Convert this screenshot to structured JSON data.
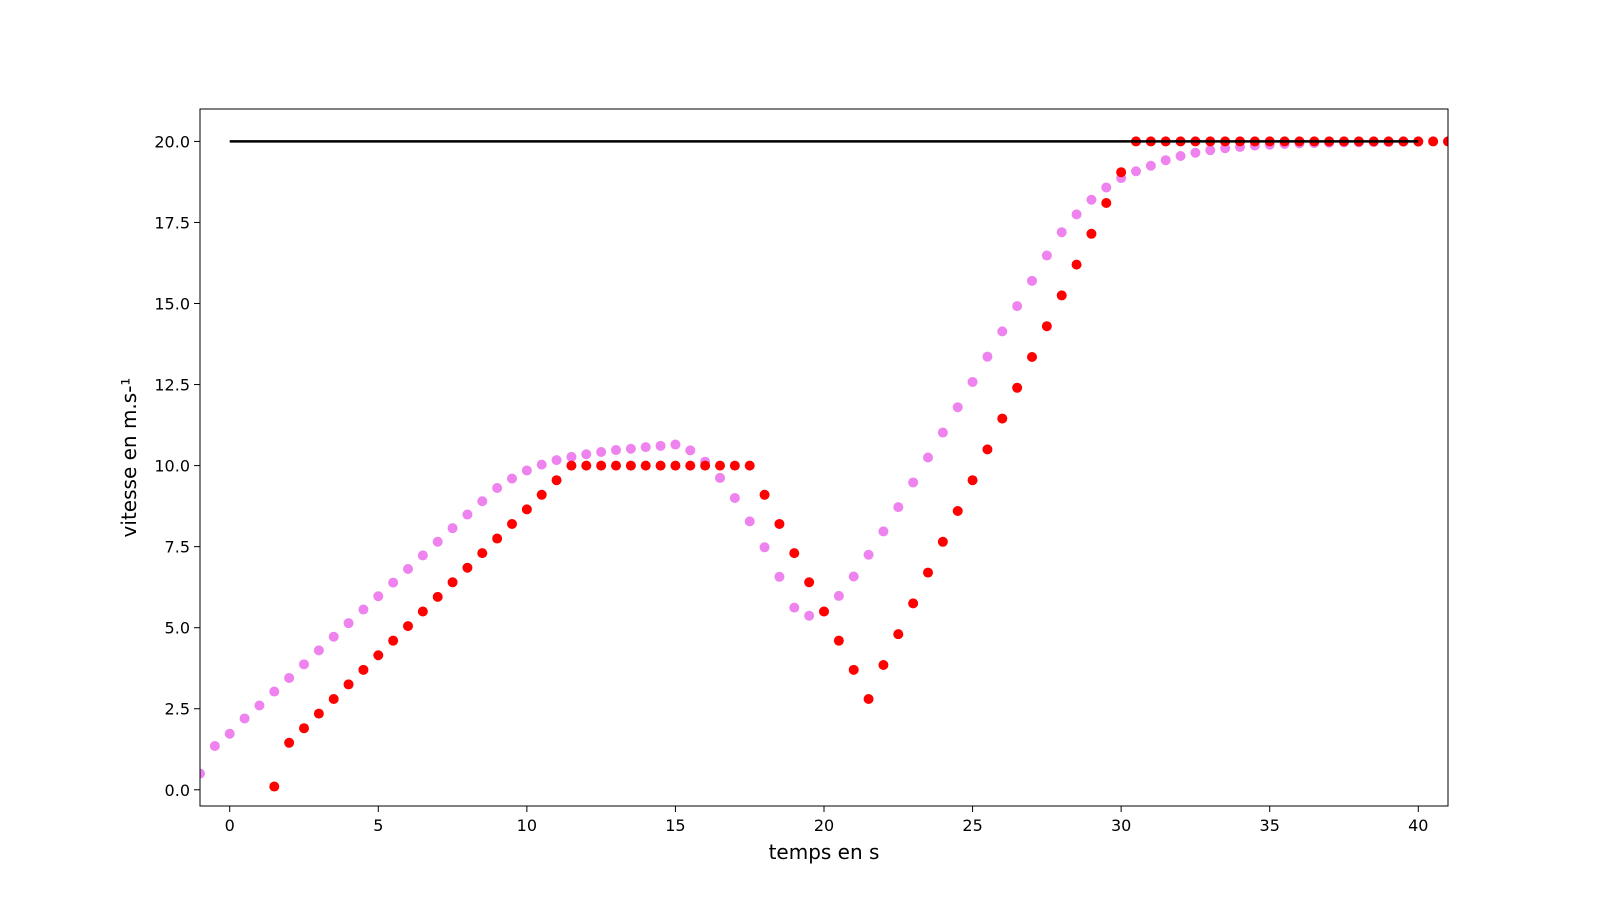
{
  "chart_data": {
    "type": "scatter",
    "title": "",
    "xlabel": "temps en s",
    "ylabel": "vitesse en m.s-¹",
    "xlim": [
      -1,
      41
    ],
    "ylim": [
      -0.5,
      21
    ],
    "x_ticks": [
      0,
      5,
      10,
      15,
      20,
      25,
      30,
      35,
      40
    ],
    "x_tick_labels": [
      "0",
      "5",
      "10",
      "15",
      "20",
      "25",
      "30",
      "35",
      "40"
    ],
    "y_ticks": [
      0.0,
      2.5,
      5.0,
      7.5,
      10.0,
      12.5,
      15.0,
      17.5,
      20.0
    ],
    "y_tick_labels": [
      "0.0",
      "2.5",
      "5.0",
      "7.5",
      "10.0",
      "12.5",
      "15.0",
      "17.5",
      "20.0"
    ],
    "grid": false,
    "legend": false,
    "reference_line": {
      "x": [
        0,
        40
      ],
      "y": [
        20,
        20
      ],
      "color": "#000000"
    },
    "series": [
      {
        "color": "#ee82ee",
        "marker": "circle",
        "x": [
          -1,
          -0.5,
          0,
          0.5,
          1,
          1.5,
          2,
          2.5,
          3,
          3.5,
          4,
          4.5,
          5,
          5.5,
          6,
          6.5,
          7,
          7.5,
          8,
          8.5,
          9,
          9.5,
          10,
          10.5,
          11,
          11.5,
          12,
          12.5,
          13,
          13.5,
          14,
          14.5,
          15,
          15.5,
          16,
          16.5,
          17,
          17.5,
          18,
          18.5,
          19,
          19.5,
          20,
          20.5,
          21,
          21.5,
          22,
          22.5,
          23,
          23.5,
          24,
          24.5,
          25,
          25.5,
          26,
          26.5,
          27,
          27.5,
          28,
          28.5,
          29,
          29.5,
          30,
          30.5,
          31,
          31.5,
          32,
          32.5,
          33,
          33.5,
          34,
          34.5,
          35,
          35.5,
          36,
          36.5,
          37,
          37.5,
          38,
          38.5,
          39,
          39.5,
          40
        ],
        "y": [
          0.5,
          1.35,
          1.73,
          2.2,
          2.6,
          3.03,
          3.45,
          3.87,
          4.3,
          4.72,
          5.14,
          5.56,
          5.97,
          6.39,
          6.81,
          7.23,
          7.65,
          8.07,
          8.49,
          8.9,
          9.31,
          9.6,
          9.85,
          10.03,
          10.17,
          10.27,
          10.35,
          10.42,
          10.48,
          10.52,
          10.57,
          10.61,
          10.65,
          10.47,
          10.12,
          9.62,
          9.0,
          8.28,
          7.48,
          6.57,
          5.62,
          5.37,
          5.5,
          5.98,
          6.58,
          7.25,
          7.97,
          8.72,
          9.48,
          10.25,
          11.02,
          11.8,
          12.58,
          13.36,
          14.14,
          14.92,
          15.7,
          16.48,
          17.2,
          17.75,
          18.2,
          18.58,
          18.87,
          19.08,
          19.25,
          19.42,
          19.55,
          19.65,
          19.73,
          19.79,
          19.83,
          19.87,
          19.9,
          19.92,
          19.94,
          19.95,
          19.96,
          19.97,
          19.97,
          19.98,
          19.98,
          19.99,
          19.99
        ]
      },
      {
        "color": "#ff0000",
        "marker": "circle",
        "x": [
          1.5,
          2,
          2.5,
          3,
          3.5,
          4,
          4.5,
          5,
          5.5,
          6,
          6.5,
          7,
          7.5,
          8,
          8.5,
          9,
          9.5,
          10,
          10.5,
          11,
          11.5,
          12,
          12.5,
          13,
          13.5,
          14,
          14.5,
          15,
          15.5,
          16,
          16.5,
          17,
          17.5,
          18,
          18.5,
          19,
          19.5,
          20,
          20.5,
          21,
          21.5,
          22,
          22.5,
          23,
          23.5,
          24,
          24.5,
          25,
          25.5,
          26,
          26.5,
          27,
          27.5,
          28,
          28.5,
          29,
          29.5,
          30,
          30.5,
          31,
          31.5,
          32,
          32.5,
          33,
          33.5,
          34,
          34.5,
          35,
          35.5,
          36,
          36.5,
          37,
          37.5,
          38,
          38.5,
          39,
          39.5,
          40,
          40.5,
          41
        ],
        "y": [
          0.1,
          1.45,
          1.9,
          2.35,
          2.8,
          3.25,
          3.7,
          4.15,
          4.6,
          5.05,
          5.5,
          5.95,
          6.4,
          6.85,
          7.3,
          7.75,
          8.2,
          8.65,
          9.1,
          9.55,
          10.0,
          10.0,
          10.0,
          10.0,
          10.0,
          10.0,
          10.0,
          10.0,
          10.0,
          10.0,
          10.0,
          10.0,
          10.0,
          9.1,
          8.2,
          7.3,
          6.4,
          5.5,
          4.6,
          3.7,
          2.8,
          3.85,
          4.8,
          5.75,
          6.7,
          7.65,
          8.6,
          9.55,
          10.5,
          11.45,
          12.4,
          13.35,
          14.3,
          15.25,
          16.2,
          17.15,
          18.1,
          19.05,
          20.0,
          20.0,
          20.0,
          20.0,
          20.0,
          20.0,
          20.0,
          20.0,
          20.0,
          20.0,
          20.0,
          20.0,
          20.0,
          20.0,
          20.0,
          20.0,
          20.0,
          20.0,
          20.0,
          20.0,
          20.0,
          20.0
        ]
      }
    ]
  }
}
